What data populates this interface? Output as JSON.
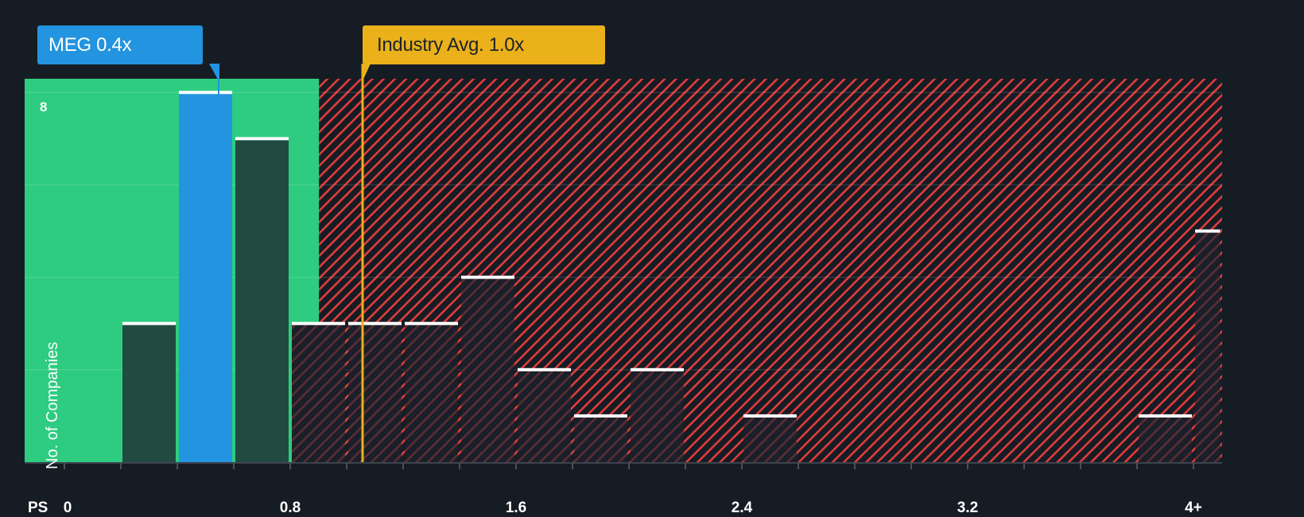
{
  "chart_data": {
    "type": "bar",
    "title": "",
    "xlabel": "PS",
    "ylabel": "No. of Companies",
    "x_tick_labels": [
      "0",
      "0.8",
      "1.6",
      "2.4",
      "3.2",
      "4+"
    ],
    "x_tick_values": [
      0,
      0.8,
      1.6,
      2.4,
      3.2,
      4.0
    ],
    "y_tick_labels": [
      "8"
    ],
    "ylim": [
      0,
      8.3
    ],
    "xlim": [
      -0.14,
      4.1
    ],
    "bin_width": 0.2,
    "bins": [
      {
        "start": 0.2,
        "end": 0.4,
        "count": 3,
        "highlight": false
      },
      {
        "start": 0.4,
        "end": 0.6,
        "count": 8,
        "highlight": true
      },
      {
        "start": 0.6,
        "end": 0.8,
        "count": 7,
        "highlight": false
      },
      {
        "start": 0.8,
        "end": 1.0,
        "count": 3,
        "highlight": false
      },
      {
        "start": 1.0,
        "end": 1.2,
        "count": 3,
        "highlight": false
      },
      {
        "start": 1.2,
        "end": 1.4,
        "count": 3,
        "highlight": false
      },
      {
        "start": 1.4,
        "end": 1.6,
        "count": 4,
        "highlight": false
      },
      {
        "start": 1.6,
        "end": 1.8,
        "count": 2,
        "highlight": false
      },
      {
        "start": 1.8,
        "end": 2.0,
        "count": 1,
        "highlight": false
      },
      {
        "start": 2.0,
        "end": 2.2,
        "count": 2,
        "highlight": false
      },
      {
        "start": 2.4,
        "end": 2.6,
        "count": 1,
        "highlight": false
      },
      {
        "start": 3.8,
        "end": 4.0,
        "count": 1,
        "highlight": false
      },
      {
        "start": 4.0,
        "end": 4.1,
        "count": 5,
        "highlight": false,
        "label": "4+"
      }
    ],
    "categories": [
      "0.2-0.4",
      "0.4-0.6",
      "0.6-0.8",
      "0.8-1.0",
      "1.0-1.2",
      "1.2-1.4",
      "1.4-1.6",
      "1.6-1.8",
      "1.8-2.0",
      "2.0-2.2",
      "2.4-2.6",
      "3.8-4.0",
      "4+"
    ],
    "values": [
      3,
      8,
      7,
      3,
      3,
      3,
      4,
      2,
      1,
      2,
      1,
      1,
      5
    ],
    "annotations": [
      {
        "label": "MEG 0.4x",
        "value": 0.4,
        "color": "#2394df"
      },
      {
        "label": "Industry Avg. 1.0x",
        "value": 1.0,
        "color": "#eab11a"
      }
    ],
    "regions": [
      {
        "name": "undervalued",
        "from": -0.14,
        "to": 0.95,
        "color": "#2ecc80"
      },
      {
        "name": "above-average",
        "from": 0.95,
        "to": 4.1,
        "color": "#e23c3c",
        "pattern": "diagonal-hatch"
      }
    ],
    "grid": true,
    "legend": "none"
  },
  "callouts": {
    "company": "MEG 0.4x",
    "industry": "Industry Avg. 1.0x"
  },
  "axis": {
    "x_title": "PS",
    "y_title": "No. of Companies",
    "y_top_tick": "8"
  },
  "colors": {
    "background": "#161c24",
    "green_zone": "#2ecc80",
    "bar_in_green": "#214b40",
    "highlight_bar": "#2394df",
    "hatch": "#e23c3c",
    "industry_line": "#eab11a",
    "bar_cap": "#ffffff"
  }
}
